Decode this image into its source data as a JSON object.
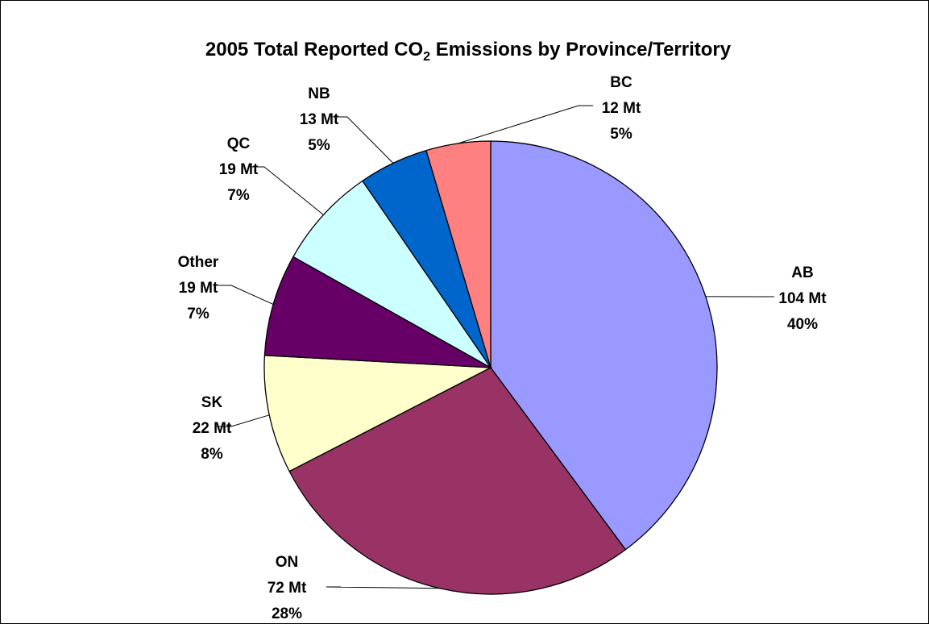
{
  "chart_data": {
    "type": "pie",
    "title": {
      "prefix": "2005 Total Reported CO",
      "subscript": "2",
      "suffix": " Emissions by Province/Territory"
    },
    "unit": "Mt",
    "slices": [
      {
        "name": "AB",
        "value": 104,
        "value_label": "104 Mt",
        "percent_label": "40%",
        "color": "#9999FF"
      },
      {
        "name": "ON",
        "value": 72,
        "value_label": "72 Mt",
        "percent_label": "28%",
        "color": "#993366"
      },
      {
        "name": "SK",
        "value": 22,
        "value_label": "22 Mt",
        "percent_label": "8%",
        "color": "#FFFFCC"
      },
      {
        "name": "Other",
        "value": 19,
        "value_label": "19 Mt",
        "percent_label": "7%",
        "color": "#660066"
      },
      {
        "name": "QC",
        "value": 19,
        "value_label": "19 Mt",
        "percent_label": "7%",
        "color": "#CCFFFF"
      },
      {
        "name": "NB",
        "value": 13,
        "value_label": "13 Mt",
        "percent_label": "5%",
        "color": "#0066CC"
      },
      {
        "name": "BC",
        "value": 12,
        "value_label": "12 Mt",
        "percent_label": "5%",
        "color": "#FF8080"
      }
    ]
  }
}
